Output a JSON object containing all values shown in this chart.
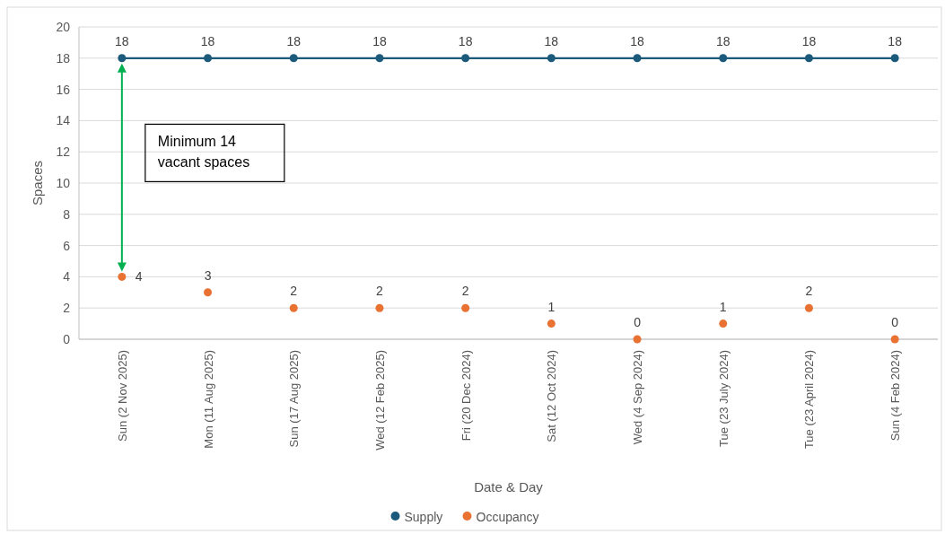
{
  "chart_data": {
    "type": "line",
    "xlabel": "Date & Day",
    "ylabel": "Spaces",
    "categories": [
      "Sun (2 Nov 2025)",
      "Mon (11 Aug 2025)",
      "Sun (17 Aug 2025)",
      "Wed (12 Feb 2025)",
      "Fri (20 Dec 2024)",
      "Sat (12 Oct 2024)",
      "Wed (4 Sep 2024)",
      "Tue (23 July 2024)",
      "Tue (23 April 2024)",
      "Sun (4 Feb 2024)"
    ],
    "series": [
      {
        "name": "Supply",
        "color": "#1b5a7a",
        "values": [
          18,
          18,
          18,
          18,
          18,
          18,
          18,
          18,
          18,
          18
        ]
      },
      {
        "name": "Occupancy",
        "type": "scatter",
        "color": "#e97132",
        "values": [
          4,
          3,
          2,
          2,
          2,
          1,
          0,
          1,
          2,
          0
        ]
      }
    ],
    "ylim": [
      0,
      20
    ],
    "yticks": [
      0,
      2,
      4,
      6,
      8,
      10,
      12,
      14,
      16,
      18,
      20
    ],
    "grid": "y",
    "legend": "bottom",
    "marker": "circle",
    "data_labels": true,
    "annotations": [
      "Minimum 14 vacant spaces"
    ]
  }
}
